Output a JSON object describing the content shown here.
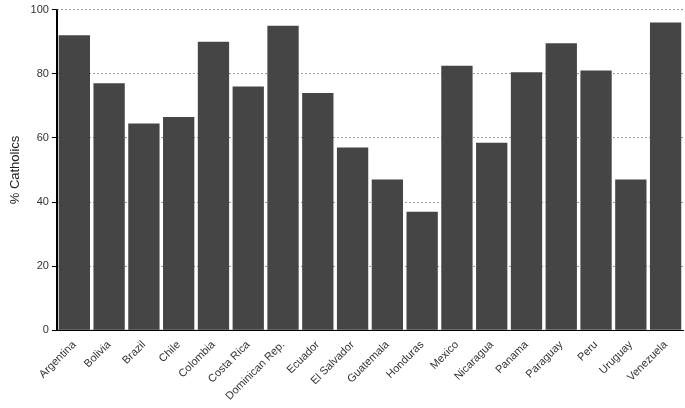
{
  "chart_data": {
    "type": "bar",
    "y_label": "% Catholics",
    "categories": [
      "Argentina",
      "Bolivia",
      "Brazil",
      "Chile",
      "Colombia",
      "Costa Rica",
      "Dominican Rep.",
      "Ecuador",
      "El Salvador",
      "Guatemala",
      "Honduras",
      "Mexico",
      "Nicaragua",
      "Panama",
      "Paraguay",
      "Peru",
      "Uruguay",
      "Venezuela"
    ],
    "values": [
      92,
      77,
      64.5,
      66.5,
      90,
      76,
      95,
      74,
      57,
      47,
      37,
      82.5,
      58.5,
      80.5,
      89.5,
      81,
      47,
      96
    ],
    "color": "#454545",
    "ylim": [
      0,
      100
    ],
    "yticks": [
      0,
      20,
      40,
      60,
      80,
      100
    ],
    "grid": true
  }
}
